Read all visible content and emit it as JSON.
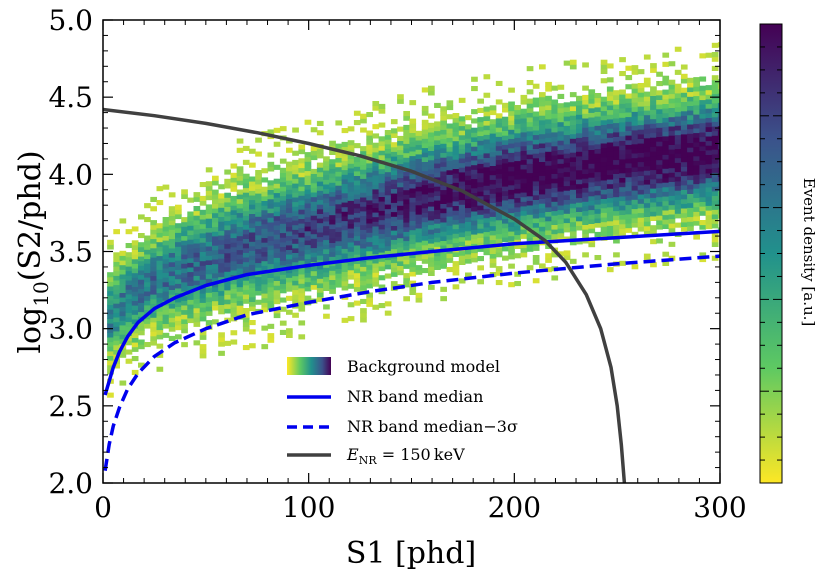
{
  "chart_data": {
    "type": "heatmap",
    "title": "",
    "x_axis": {
      "ticks": [
        0,
        100,
        200,
        300
      ],
      "tick_labels": [
        "0",
        "100",
        "200",
        "300"
      ],
      "range": [
        0,
        300
      ]
    },
    "x_axis_label": "S1 [phd]",
    "y_axis": {
      "tick_labels": [
        "2.0",
        "2.5",
        "3.0",
        "3.5",
        "4.0",
        "4.5",
        "5.0"
      ],
      "ticks": [
        2.0,
        2.5,
        3.0,
        3.5,
        4.0,
        4.5,
        5.0
      ],
      "range": [
        2.0,
        5.0
      ]
    },
    "y_axis_label_base": "log",
    "y_axis_label_sub": "10",
    "y_axis_label_rest": "(S2/phd)",
    "colorbar_label": "Event density [a.u.]",
    "colormap": "viridis_r",
    "grid": false,
    "legend_position": "lower-center",
    "legend": {
      "background_model": "Background model",
      "nr_median": "NR band median",
      "nr_median_3sigma": "NR band median−3σ",
      "energy_sym": "E",
      "energy_sub": "NR",
      "energy_rest": " = 150 keV"
    },
    "series": [
      {
        "id": "nr_median",
        "color": "#0000ee",
        "style": "solid",
        "x": [
          1,
          3,
          5,
          8,
          12,
          17,
          25,
          35,
          50,
          70,
          100,
          130,
          160,
          200,
          250,
          300
        ],
        "y": [
          2.57,
          2.66,
          2.75,
          2.85,
          2.95,
          3.04,
          3.13,
          3.2,
          3.28,
          3.35,
          3.41,
          3.46,
          3.5,
          3.55,
          3.59,
          3.63
        ]
      },
      {
        "id": "nr_median_3sigma",
        "color": "#0000ee",
        "style": "dashed",
        "x": [
          1,
          3,
          5,
          8,
          12,
          17,
          25,
          35,
          50,
          70,
          100,
          130,
          160,
          200,
          250,
          300
        ],
        "y": [
          2.08,
          2.25,
          2.37,
          2.49,
          2.61,
          2.71,
          2.82,
          2.91,
          3.0,
          3.09,
          3.17,
          3.24,
          3.3,
          3.36,
          3.42,
          3.47
        ]
      },
      {
        "id": "energy_150",
        "color": "#404040",
        "style": "solid",
        "x": [
          0,
          25,
          50,
          75,
          100,
          125,
          150,
          175,
          200,
          215,
          225,
          235,
          242,
          247,
          250,
          252,
          253.5
        ],
        "y": [
          4.42,
          4.38,
          4.33,
          4.27,
          4.2,
          4.12,
          4.02,
          3.89,
          3.71,
          3.57,
          3.43,
          3.22,
          3.0,
          2.75,
          2.5,
          2.25,
          2.0
        ]
      }
    ],
    "background_band": {
      "x_range": [
        2,
        300
      ],
      "center_x": [
        2,
        10,
        20,
        40,
        60,
        80,
        100,
        130,
        160,
        200,
        250,
        300
      ],
      "center_y": [
        3.05,
        3.18,
        3.27,
        3.4,
        3.5,
        3.58,
        3.65,
        3.76,
        3.87,
        3.98,
        4.08,
        4.15
      ]
    }
  }
}
